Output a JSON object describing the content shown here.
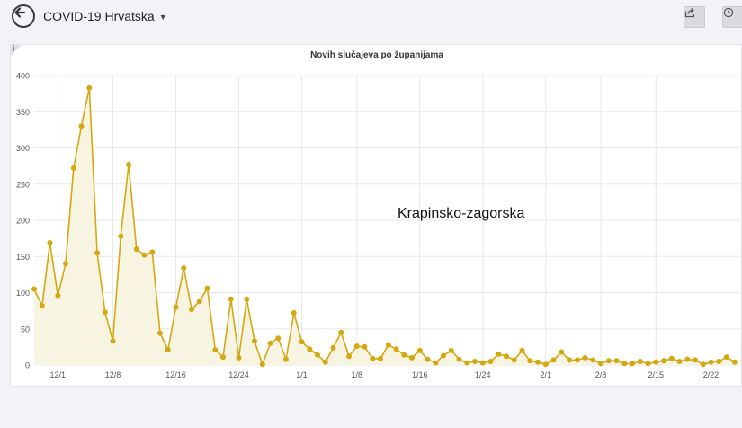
{
  "header": {
    "title": "COVID-19 Hrvatska",
    "back_icon": "arrow-left-icon",
    "dropdown_icon": "caret-down-icon",
    "share_icon": "share-icon",
    "time_icon": "clock-icon"
  },
  "panel": {
    "info_label": "i"
  },
  "colors": {
    "line": "#d4a80f",
    "area": "#f8f4e2",
    "grid": "#e8e8e8"
  },
  "chart_data": {
    "type": "area",
    "title": "Novih slučajeva po županijama",
    "annotation": "Krapinsko-zagorska",
    "xlabel": "",
    "ylabel": "",
    "ylim": [
      0,
      400
    ],
    "yticks": [
      0,
      50,
      100,
      150,
      200,
      250,
      300,
      350,
      400
    ],
    "xticks": [
      {
        "label": "12/1",
        "index": 3
      },
      {
        "label": "12/8",
        "index": 10
      },
      {
        "label": "12/16",
        "index": 18
      },
      {
        "label": "12/24",
        "index": 26
      },
      {
        "label": "1/1",
        "index": 34
      },
      {
        "label": "1/8",
        "index": 41
      },
      {
        "label": "1/16",
        "index": 49
      },
      {
        "label": "1/24",
        "index": 57
      },
      {
        "label": "2/1",
        "index": 65
      },
      {
        "label": "2/8",
        "index": 72
      },
      {
        "label": "2/15",
        "index": 79
      },
      {
        "label": "2/22",
        "index": 86
      }
    ],
    "grid": true,
    "legend": "none",
    "series": [
      {
        "values": [
          105,
          82,
          169,
          96,
          140,
          272,
          330,
          383,
          155,
          73,
          33,
          178,
          277,
          160,
          152,
          156,
          44,
          21,
          80,
          134,
          77,
          88,
          106,
          21,
          11,
          91,
          10,
          91,
          33,
          1,
          30,
          37,
          8,
          72,
          32,
          22,
          14,
          4,
          24,
          45,
          12,
          26,
          25,
          9,
          9,
          28,
          22,
          14,
          10,
          20,
          8,
          3,
          13,
          20,
          8,
          3,
          5,
          3,
          5,
          15,
          12,
          7,
          20,
          6,
          4,
          1,
          7,
          18,
          7,
          7,
          10,
          7,
          2,
          6,
          6,
          2,
          2,
          5,
          2,
          4,
          6,
          9,
          5,
          8,
          7,
          1,
          4,
          5,
          11,
          4
        ]
      }
    ]
  }
}
